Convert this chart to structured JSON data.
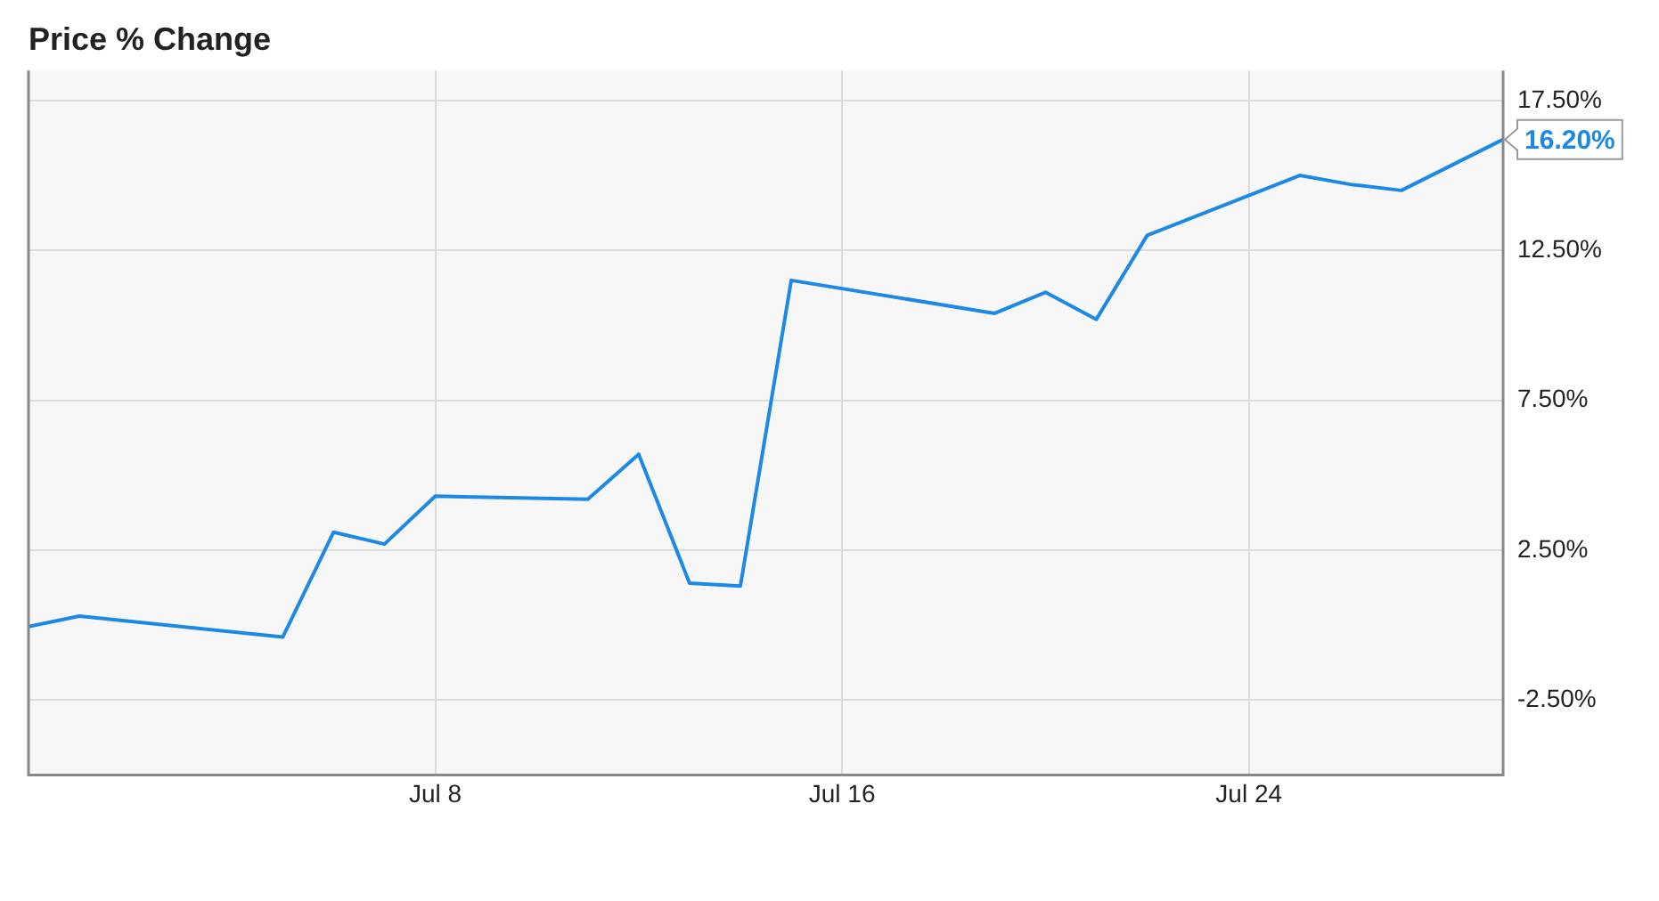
{
  "chart_data": {
    "type": "line",
    "title": "Price % Change",
    "x": [
      "--06-30",
      "--07-01",
      "--07-05",
      "--07-06",
      "--07-07",
      "--07-08",
      "--07-11",
      "--07-12",
      "--07-13",
      "--07-14",
      "--07-15",
      "--07-19",
      "--07-20",
      "--07-21",
      "--07-22",
      "--07-25",
      "--07-26",
      "--07-27",
      "--07-29"
    ],
    "series": [
      {
        "color": "#1e88e5",
        "values": [
          -0.05,
          0.3,
          -0.4,
          3.1,
          2.7,
          4.3,
          4.2,
          5.7,
          1.4,
          1.3,
          11.5,
          10.4,
          11.1,
          10.2,
          13.0,
          15.0,
          14.7,
          14.5,
          16.2
        ]
      }
    ],
    "xlim": [
      "--06-30",
      "--07-29"
    ],
    "xticks": [
      {
        "value": "--07-08",
        "label": "Jul 8"
      },
      {
        "value": "--07-16",
        "label": "Jul 16"
      },
      {
        "value": "--07-24",
        "label": "Jul 24"
      }
    ],
    "ylim": [
      -5,
      18.5
    ],
    "yticks": [
      {
        "value": -2.5,
        "label": "-2.50%"
      },
      {
        "value": 2.5,
        "label": "2.50%"
      },
      {
        "value": 7.5,
        "label": "7.50%"
      },
      {
        "value": 12.5,
        "label": "12.50%"
      },
      {
        "value": 17.5,
        "label": "17.50%"
      }
    ],
    "annotations": [
      {
        "text": "16.20%",
        "x": "--07-29",
        "y": 16.2
      }
    ],
    "grid": true,
    "legend": false,
    "marker": "none",
    "line_style": "solid"
  }
}
